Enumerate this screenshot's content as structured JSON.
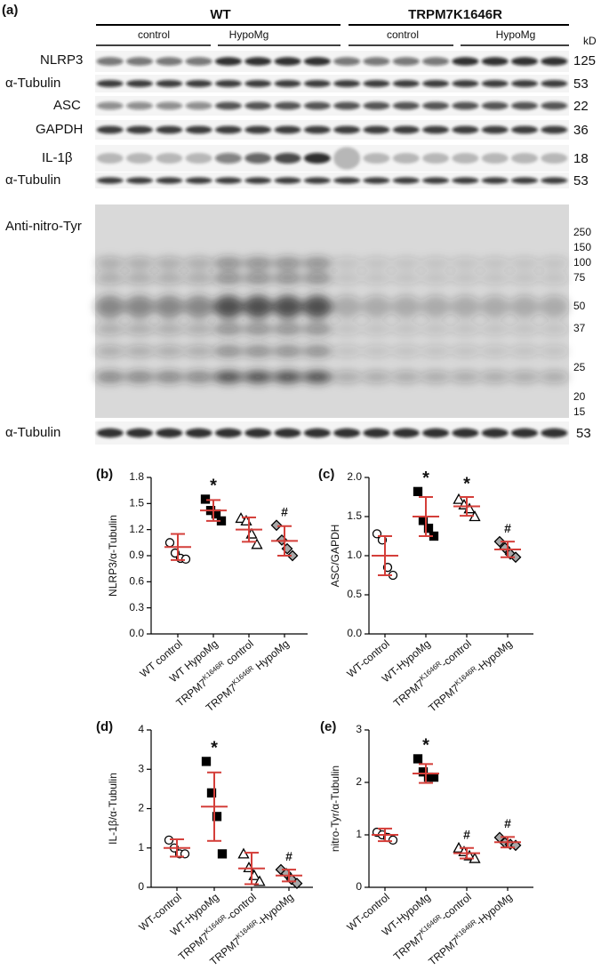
{
  "blot": {
    "panel": "(a)",
    "groups": [
      "WT",
      "TRPM7K1646R"
    ],
    "subgroups": [
      "control",
      "HypoMg",
      "control",
      "HypoMg"
    ],
    "kd_unit": "kD",
    "rows": [
      {
        "label": "NLRP3",
        "kd": 125
      },
      {
        "label": "α-Tubulin",
        "kd": 53
      },
      {
        "label": "ASC",
        "kd": 22
      },
      {
        "label": "GAPDH",
        "kd": 36
      },
      {
        "label": "IL-1β",
        "kd": 18
      },
      {
        "label": "α-Tubulin",
        "kd": 53
      }
    ],
    "nitro": {
      "label": "Anti-nitro-Tyr",
      "markers": [
        250,
        150,
        100,
        75,
        50,
        37,
        25,
        20,
        15
      ]
    },
    "bottom_row": {
      "label": "α-Tubulin",
      "kd": 53
    }
  },
  "chart_data": [
    {
      "type": "dot_plot",
      "panel": "(b)",
      "ylabel": "NLRP3/α-Tubulin",
      "ylim": [
        0,
        1.8
      ],
      "yticks": [
        {
          "value": 0,
          "label": "0.0"
        },
        0.3,
        0.6,
        0.9,
        1.2,
        1.5,
        1.8
      ],
      "error_color": "#d43f3a",
      "categories": [
        [
          "WT control"
        ],
        [
          "WT HypoMg"
        ],
        [
          "TRPM7",
          "K1646R",
          " control"
        ],
        [
          "TRPM7",
          "K1646R",
          " HypoMg"
        ]
      ],
      "groups": [
        {
          "marker": "circle",
          "fill": "#ffffff",
          "values": [
            1.05,
            0.93,
            0.87,
            0.86
          ],
          "mean": 1.0,
          "error": 0.15
        },
        {
          "marker": "square",
          "fill": "#000000",
          "values": [
            1.55,
            1.42,
            1.38,
            1.3
          ],
          "mean": 1.42,
          "error": 0.12,
          "annotation": "*"
        },
        {
          "marker": "triangle",
          "fill": "#ffffff",
          "values": [
            1.33,
            1.3,
            1.15,
            1.03
          ],
          "mean": 1.2,
          "error": 0.14
        },
        {
          "marker": "diamond",
          "fill": "#a8a8a8",
          "values": [
            1.25,
            1.08,
            0.98,
            0.9
          ],
          "mean": 1.07,
          "error": 0.17,
          "annotation": "#"
        }
      ]
    },
    {
      "type": "dot_plot",
      "panel": "(c)",
      "ylabel": "ASC/GAPDH",
      "ylim": [
        0,
        2
      ],
      "yticks": [
        {
          "value": 0,
          "label": "0.0"
        },
        0.5,
        {
          "value": 1,
          "label": "1.0"
        },
        1.5,
        {
          "value": 2,
          "label": "2.0"
        }
      ],
      "error_color": "#d43f3a",
      "categories": [
        [
          "WT-control"
        ],
        [
          "WT-HypoMg"
        ],
        [
          "TRPM7",
          "K1646R",
          "-control"
        ],
        [
          "TRPM7",
          "K1646R",
          "-HypoMg"
        ]
      ],
      "groups": [
        {
          "marker": "circle",
          "fill": "#ffffff",
          "values": [
            1.28,
            1.2,
            0.85,
            0.75
          ],
          "mean": 1.0,
          "error": 0.25
        },
        {
          "marker": "square",
          "fill": "#000000",
          "values": [
            1.82,
            1.45,
            1.35,
            1.25
          ],
          "mean": 1.5,
          "error": 0.25,
          "annotation": "*"
        },
        {
          "marker": "triangle",
          "fill": "#ffffff",
          "values": [
            1.72,
            1.65,
            1.6,
            1.5
          ],
          "mean": 1.63,
          "error": 0.12,
          "annotation": "*"
        },
        {
          "marker": "diamond",
          "fill": "#a8a8a8",
          "values": [
            1.18,
            1.1,
            1.02,
            0.98
          ],
          "mean": 1.08,
          "error": 0.1,
          "annotation": "#"
        }
      ]
    },
    {
      "type": "dot_plot",
      "panel": "(d)",
      "ylabel": "IL-1β/α-Tubulin",
      "ylim": [
        0,
        4
      ],
      "yticks": [
        0,
        1,
        2,
        3,
        4
      ],
      "error_color": "#d43f3a",
      "categories": [
        [
          "WT-control"
        ],
        [
          "WT-HypoMg"
        ],
        [
          "TRPM7",
          "K1646R",
          "-control"
        ],
        [
          "TRPM7",
          "K1646R",
          "-HypoMg"
        ]
      ],
      "groups": [
        {
          "marker": "circle",
          "fill": "#ffffff",
          "values": [
            1.2,
            1.0,
            0.85,
            0.85
          ],
          "mean": 1.0,
          "error": 0.22
        },
        {
          "marker": "square",
          "fill": "#000000",
          "values": [
            3.2,
            2.4,
            1.8,
            0.85
          ],
          "mean": 2.05,
          "error": 0.87,
          "annotation": "*"
        },
        {
          "marker": "triangle",
          "fill": "#ffffff",
          "values": [
            0.85,
            0.5,
            0.3,
            0.15
          ],
          "mean": 0.48,
          "error": 0.4
        },
        {
          "marker": "diamond",
          "fill": "#a8a8a8",
          "values": [
            0.45,
            0.35,
            0.2,
            0.1
          ],
          "mean": 0.3,
          "error": 0.15,
          "annotation": "#"
        }
      ]
    },
    {
      "type": "dot_plot",
      "panel": "(e)",
      "ylabel": "nitro-Tyr/α-Tubulin",
      "ylim": [
        0,
        3
      ],
      "yticks": [
        0,
        1,
        2,
        3
      ],
      "error_color": "#d43f3a",
      "categories": [
        [
          "WT-control"
        ],
        [
          "WT-HypoMg"
        ],
        [
          "TRPM7",
          "K1646R",
          "-control"
        ],
        [
          "TRPM7",
          "K1646R",
          "-HypoMg"
        ]
      ],
      "groups": [
        {
          "marker": "circle",
          "fill": "#ffffff",
          "values": [
            1.05,
            1.0,
            0.95,
            0.9
          ],
          "mean": 1.0,
          "error": 0.12
        },
        {
          "marker": "square",
          "fill": "#000000",
          "values": [
            2.45,
            2.2,
            2.1,
            2.1
          ],
          "mean": 2.17,
          "error": 0.18,
          "annotation": "*"
        },
        {
          "marker": "triangle",
          "fill": "#ffffff",
          "values": [
            0.75,
            0.68,
            0.6,
            0.55
          ],
          "mean": 0.65,
          "error": 0.1,
          "annotation": "#"
        },
        {
          "marker": "diamond",
          "fill": "#a8a8a8",
          "values": [
            0.95,
            0.85,
            0.82,
            0.8
          ],
          "mean": 0.86,
          "error": 0.1,
          "annotation": "#"
        }
      ]
    }
  ]
}
